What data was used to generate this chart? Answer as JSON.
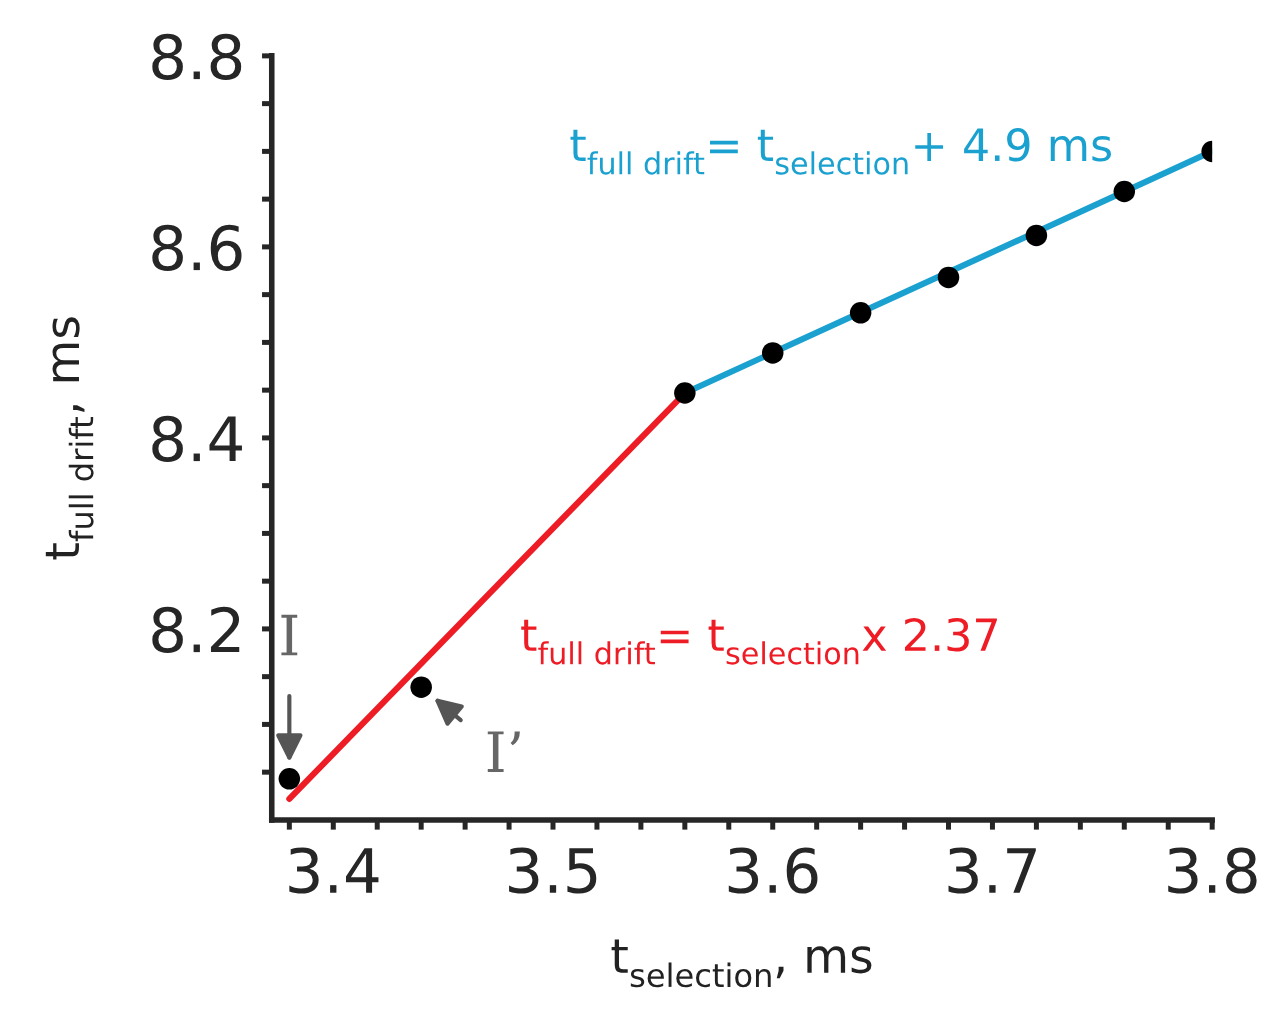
{
  "chart_data": {
    "type": "scatter",
    "xlabel": "t$_{selection}$, ms",
    "ylabel": "t$_{full drift}$, ms",
    "xlim": [
      3.372,
      3.8
    ],
    "xticks": [
      {
        "value": 3.38,
        "label": null
      },
      3.4,
      {
        "value": 3.42,
        "label": null
      },
      {
        "value": 3.44,
        "label": null
      },
      {
        "value": 3.46,
        "label": null
      },
      {
        "value": 3.48,
        "label": null
      },
      3.5,
      {
        "value": 3.52,
        "label": null
      },
      {
        "value": 3.54,
        "label": null
      },
      {
        "value": 3.56,
        "label": null
      },
      {
        "value": 3.58,
        "label": null
      },
      3.6,
      {
        "value": 3.62,
        "label": null
      },
      {
        "value": 3.64,
        "label": null
      },
      {
        "value": 3.66,
        "label": null
      },
      {
        "value": 3.68,
        "label": null
      },
      3.7,
      {
        "value": 3.72,
        "label": null
      },
      {
        "value": 3.74,
        "label": null
      },
      {
        "value": 3.76,
        "label": null
      },
      {
        "value": 3.78,
        "label": null
      },
      3.8
    ],
    "ylim": [
      8.0,
      8.8
    ],
    "yticks": [
      {
        "value": 8.05,
        "label": null
      },
      {
        "value": 8.1,
        "label": null
      },
      {
        "value": 8.15,
        "label": null
      },
      8.2,
      {
        "value": 8.25,
        "label": null
      },
      {
        "value": 8.3,
        "label": null
      },
      {
        "value": 8.35,
        "label": null
      },
      8.4,
      {
        "value": 8.45,
        "label": null
      },
      {
        "value": 8.5,
        "label": null
      },
      {
        "value": 8.55,
        "label": null
      },
      8.6,
      {
        "value": 8.65,
        "label": null
      },
      {
        "value": 8.7,
        "label": null
      },
      {
        "value": 8.75,
        "label": null
      },
      8.8
    ],
    "grid": false,
    "marker": "circle",
    "series": [
      {
        "type": "scatter",
        "color": "#000000",
        "x": [
          3.38,
          3.44,
          3.56,
          3.6,
          3.64,
          3.68,
          3.72,
          3.76,
          3.8
        ],
        "values": [
          8.043,
          8.139,
          8.447,
          8.489,
          8.531,
          8.568,
          8.612,
          8.658,
          8.7
        ]
      },
      {
        "type": "line",
        "marker": "none",
        "name": "t$_{full drift}$= t$_{selection}$x 2.37",
        "color": "#ee1c25",
        "x": [
          3.38,
          3.56
        ],
        "values": [
          8.022,
          8.447
        ]
      },
      {
        "type": "line",
        "marker": "none",
        "name": "t$_{full drift}$= t$_{selection}$+ 4.9 ms",
        "color": "#1ba1d0",
        "x": [
          3.56,
          3.8
        ],
        "values": [
          8.447,
          8.7
        ]
      }
    ],
    "annotations": [
      {
        "text": "I",
        "x": 3.38,
        "y": 8.043
      },
      {
        "text": "I’",
        "x": 3.44,
        "y": 8.139
      }
    ]
  }
}
